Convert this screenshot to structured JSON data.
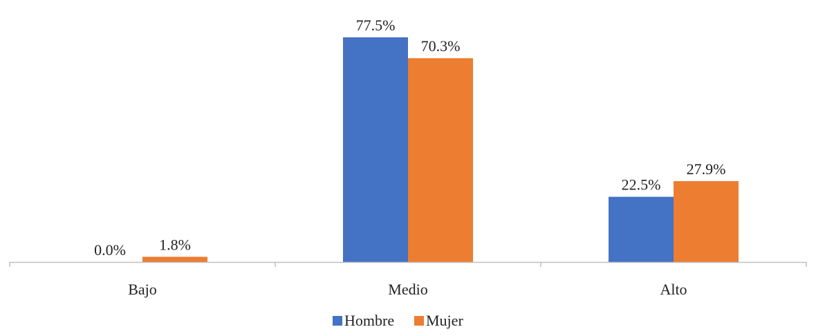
{
  "chart_data": {
    "type": "bar",
    "categories": [
      "Bajo",
      "Medio",
      "Alto"
    ],
    "series": [
      {
        "name": "Hombre",
        "values": [
          0.0,
          77.5,
          22.5
        ],
        "labels": [
          "0.0%",
          "77.5%",
          "22.5%"
        ],
        "color": "#4472C4"
      },
      {
        "name": "Mujer",
        "values": [
          1.8,
          70.3,
          27.9
        ],
        "labels": [
          "1.8%",
          "70.3%",
          "27.9%"
        ],
        "color": "#ED7D31"
      }
    ],
    "ylim": [
      0,
      80
    ],
    "grid": false,
    "legend_position": "bottom",
    "axis_color": "#BFBFBF"
  }
}
